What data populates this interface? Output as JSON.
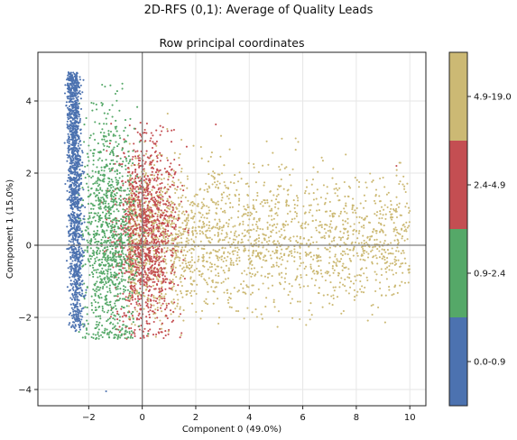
{
  "figure": {
    "suptitle": "2D-RFS (0,1): Average of Quality Leads",
    "subtitle": "Row principal coordinates"
  },
  "chart_data": {
    "type": "scatter",
    "title": "Row principal coordinates",
    "xlabel": "Component 0 (49.0%)",
    "ylabel": "Component 1 (15.0%)",
    "xlim": [
      -3.9,
      10.6
    ],
    "ylim": [
      -4.45,
      5.35
    ],
    "xticks": [
      -2,
      0,
      2,
      4,
      6,
      8,
      10
    ],
    "yticks": [
      -4,
      -2,
      0,
      2,
      4
    ],
    "grid": true,
    "reference_lines": {
      "x": 0,
      "y": 0
    },
    "series": [
      {
        "name": "0.0-0.9",
        "color": "#4c72b0",
        "clusters": [
          {
            "x": [
              -2.85,
              -2.15
            ],
            "y": [
              -2.5,
              4.8
            ],
            "n": 1400
          }
        ],
        "points": [
          {
            "x": -1.35,
            "y": -4.05
          }
        ]
      },
      {
        "name": "0.9-2.4",
        "color": "#55a868",
        "clusters": [
          {
            "x": [
              -2.3,
              -0.2
            ],
            "y": [
              -2.6,
              4.5
            ],
            "n": 1100
          }
        ],
        "points": [
          {
            "x": -1.5,
            "y": 4.45
          },
          {
            "x": -1.0,
            "y": 4.2
          }
        ]
      },
      {
        "name": "2.4-4.9",
        "color": "#c44e52",
        "clusters": [
          {
            "x": [
              -1.1,
              1.4
            ],
            "y": [
              -2.6,
              3.4
            ],
            "n": 1200
          }
        ],
        "points": [
          {
            "x": 2.75,
            "y": 3.35
          },
          {
            "x": 9.5,
            "y": 2.2
          }
        ]
      },
      {
        "name": "4.9-19.0",
        "color": "#ccb974",
        "clusters": [
          {
            "x": [
              -0.5,
              10.0
            ],
            "y": [
              -2.6,
              3.5
            ],
            "n": 2400
          }
        ],
        "points": [
          {
            "x": 0.95,
            "y": 3.65
          },
          {
            "x": 10.0,
            "y": 0.95
          },
          {
            "x": 9.6,
            "y": 1.7
          }
        ]
      }
    ],
    "colorbar": {
      "labels": [
        "0.0-0.9",
        "0.9-2.4",
        "2.4-4.9",
        "4.9-19.0"
      ],
      "colors": [
        "#4c72b0",
        "#55a868",
        "#c44e52",
        "#ccb974"
      ]
    }
  }
}
